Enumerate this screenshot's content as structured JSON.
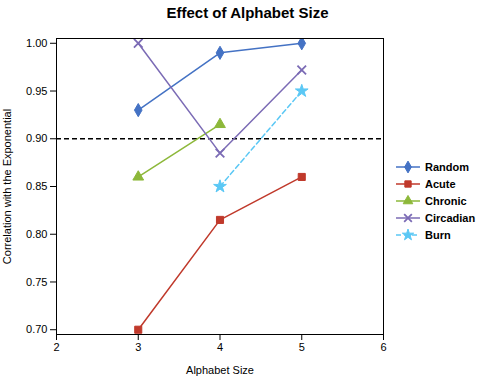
{
  "chart_data": {
    "type": "line",
    "title": "Effect of Alphabet Size",
    "x_label": "Alphabet Size",
    "y_label": "Correlation with the Exponential",
    "xlim": [
      2,
      6
    ],
    "ylim": [
      0.695,
      1.005
    ],
    "xticks": [
      2,
      3,
      4,
      5,
      6
    ],
    "yticks": [
      {
        "value": 0.7,
        "label": "0.70"
      },
      0.75,
      {
        "value": 0.8,
        "label": "0.80"
      },
      0.85,
      {
        "value": 0.9,
        "label": "0.90"
      },
      0.95,
      {
        "value": 1.0,
        "label": "1.00"
      }
    ],
    "legend": "right",
    "reference_line": {
      "y": 0.9,
      "color": "#000000",
      "line_style": "dashed"
    },
    "series": [
      {
        "name": "Random",
        "color": "#4472C4",
        "marker": "diamond",
        "line_style": "solid",
        "x": [
          3,
          4,
          5
        ],
        "values": [
          0.93,
          0.99,
          1.0
        ]
      },
      {
        "name": "Acute",
        "color": "#C0392B",
        "marker": "square",
        "line_style": "solid",
        "x": [
          3,
          4,
          5
        ],
        "values": [
          0.7,
          0.815,
          0.86
        ]
      },
      {
        "name": "Chronic",
        "color": "#8DB83A",
        "marker": "triangle",
        "line_style": "solid",
        "x": [
          3,
          4
        ],
        "values": [
          0.86,
          0.915
        ]
      },
      {
        "name": "Circadian",
        "color": "#7B6BB5",
        "marker": "x",
        "line_style": "solid",
        "x": [
          3,
          4,
          5
        ],
        "values": [
          1.0,
          0.885,
          0.972
        ]
      },
      {
        "name": "Burn",
        "color": "#5BC8F5",
        "marker": "star",
        "line_style": "dashed",
        "x": [
          4,
          5
        ],
        "values": [
          0.85,
          0.95
        ]
      }
    ]
  }
}
